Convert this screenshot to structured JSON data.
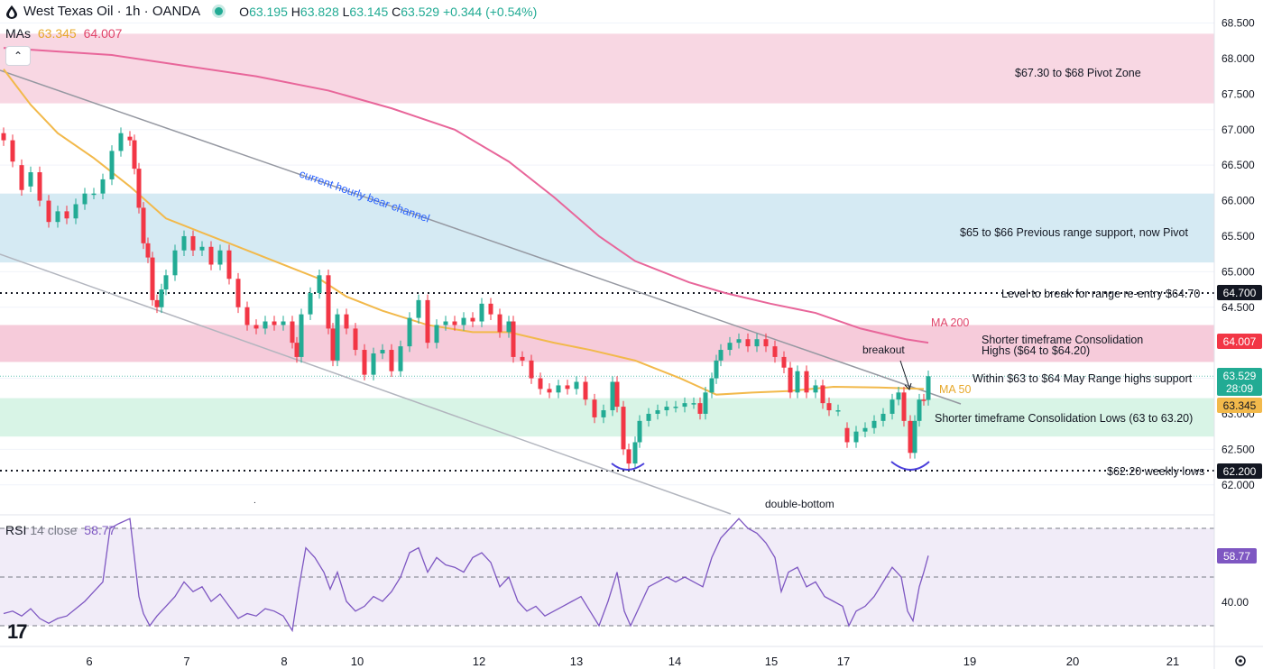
{
  "header": {
    "title": "West Texas Oil · 1h · OANDA",
    "open_label": "O",
    "open": "63.195",
    "high_label": "H",
    "high": "63.828",
    "low_label": "L",
    "low": "63.145",
    "close_label": "C",
    "close": "63.529",
    "change": "+0.344 (+0.54%)"
  },
  "mas": {
    "label": "MAs",
    "ma50": "63.345",
    "ma200": "64.007"
  },
  "collapse_icon": "chevron-up-icon",
  "rsi": {
    "label": "RSI",
    "params": "14 close",
    "value": "58.77",
    "axis_label": "40.00",
    "badge": "58.77"
  },
  "annotations": {
    "pivot_zone": "$67.30 to $68 Pivot Zone",
    "prev_range": "$65 to $66 Previous range support, now Pivot",
    "level_break": "Level to break for range re-entry $64.70",
    "consol_highs_1": "Shorter timeframe Consolidation",
    "consol_highs_2": "Highs ($64 to $64.20)",
    "within_range": "Within $63 to $64 May Range highs support",
    "consol_lows": "Shorter timeframe Consolidation Lows (63 to 63.20)",
    "weekly_lows": "$62.20 weekly lows",
    "ma200": "MA 200",
    "ma50": "MA 50",
    "breakout": "breakout",
    "channel": "current hourly bear channel",
    "double_bottom": "double-bottom"
  },
  "price_badges": {
    "level_64_70": "64.700",
    "ma200": "64.007",
    "last": "63.529",
    "countdown": "28:09",
    "ma50": "63.345",
    "level_62_20": "62.200"
  },
  "colors": {
    "up": "#22ab94",
    "down": "#f23645",
    "ma50": "#f2b94b",
    "ma200": "#e8669a",
    "rsi": "#7e57c2",
    "pink_zone": "#f8d7e3",
    "blue_zone": "#d5eaf3",
    "green_zone": "#d8f4e6"
  },
  "chart_data": {
    "type": "candlestick",
    "symbol": "West Texas Oil",
    "timeframe": "1h",
    "y_axis": {
      "ylim": [
        61.85,
        68.6
      ],
      "ticks": [
        62.0,
        62.5,
        63.0,
        63.5,
        64.0,
        64.5,
        65.0,
        65.5,
        66.0,
        66.5,
        67.0,
        67.5,
        68.0,
        68.5
      ],
      "tick_labels": [
        "62.000",
        "62.500",
        "63.000",
        "63.500",
        "64.000",
        "64.500",
        "65.000",
        "65.500",
        "66.000",
        "66.500",
        "67.000",
        "67.500",
        "68.000",
        "68.500"
      ]
    },
    "x_axis": {
      "labels": [
        "6",
        "7",
        "8",
        "10",
        "12",
        "13",
        "14",
        "15",
        "17",
        "19",
        "20",
        "21"
      ]
    },
    "zones": [
      {
        "name": "pivot-zone",
        "from": 67.37,
        "to": 68.35
      },
      {
        "name": "previous-range",
        "from": 65.13,
        "to": 66.1
      },
      {
        "name": "consolidation-highs",
        "from": 63.73,
        "to": 64.25
      },
      {
        "name": "consolidation-lows",
        "from": 62.68,
        "to": 63.22
      }
    ],
    "levels": [
      64.7,
      62.2
    ],
    "last_price": 63.529,
    "series": [
      {
        "name": "MA 50",
        "points": [
          [
            0,
            67.85
          ],
          [
            30,
            67.35
          ],
          [
            60,
            66.95
          ],
          [
            100,
            66.6
          ],
          [
            140,
            66.2
          ],
          [
            180,
            65.75
          ],
          [
            220,
            65.55
          ],
          [
            270,
            65.3
          ],
          [
            320,
            65.05
          ],
          [
            350,
            64.9
          ],
          [
            380,
            64.65
          ],
          [
            420,
            64.45
          ],
          [
            470,
            64.25
          ],
          [
            520,
            64.15
          ],
          [
            560,
            64.15
          ],
          [
            610,
            64.0
          ],
          [
            650,
            63.9
          ],
          [
            700,
            63.75
          ],
          [
            750,
            63.5
          ],
          [
            790,
            63.27
          ],
          [
            830,
            63.3
          ],
          [
            870,
            63.32
          ],
          [
            920,
            63.38
          ],
          [
            970,
            63.37
          ],
          [
            1020,
            63.35
          ]
        ]
      },
      {
        "name": "MA 200",
        "points": [
          [
            0,
            68.15
          ],
          [
            60,
            68.1
          ],
          [
            120,
            68.05
          ],
          [
            200,
            67.9
          ],
          [
            280,
            67.75
          ],
          [
            360,
            67.55
          ],
          [
            430,
            67.3
          ],
          [
            500,
            67.0
          ],
          [
            560,
            66.55
          ],
          [
            610,
            66.05
          ],
          [
            660,
            65.5
          ],
          [
            700,
            65.15
          ],
          [
            760,
            64.85
          ],
          [
            800,
            64.7
          ],
          [
            850,
            64.55
          ],
          [
            900,
            64.42
          ],
          [
            950,
            64.2
          ],
          [
            1000,
            64.05
          ],
          [
            1025,
            64.0
          ]
        ]
      }
    ],
    "candles": [
      {
        "t": 0,
        "o": 66.95,
        "c": 66.85
      },
      {
        "t": 10,
        "o": 66.85,
        "c": 66.55
      },
      {
        "t": 20,
        "o": 66.5,
        "c": 66.15
      },
      {
        "t": 30,
        "o": 66.2,
        "c": 66.4
      },
      {
        "t": 40,
        "o": 66.4,
        "c": 66.0
      },
      {
        "t": 50,
        "o": 66.0,
        "c": 65.7
      },
      {
        "t": 60,
        "o": 65.7,
        "c": 65.85
      },
      {
        "t": 70,
        "o": 65.85,
        "c": 65.75
      },
      {
        "t": 80,
        "o": 65.75,
        "c": 65.95
      },
      {
        "t": 90,
        "o": 65.95,
        "c": 66.1
      },
      {
        "t": 100,
        "o": 66.1,
        "c": 66.1
      },
      {
        "t": 110,
        "o": 66.1,
        "c": 66.3
      },
      {
        "t": 120,
        "o": 66.3,
        "c": 66.7
      },
      {
        "t": 130,
        "o": 66.7,
        "c": 66.95
      },
      {
        "t": 140,
        "o": 66.9,
        "c": 66.85
      },
      {
        "t": 145,
        "o": 66.85,
        "c": 66.45
      },
      {
        "t": 150,
        "o": 66.45,
        "c": 65.9
      },
      {
        "t": 155,
        "o": 65.9,
        "c": 65.4
      },
      {
        "t": 160,
        "o": 65.4,
        "c": 65.2
      },
      {
        "t": 165,
        "o": 65.2,
        "c": 64.6
      },
      {
        "t": 170,
        "o": 64.6,
        "c": 64.5
      },
      {
        "t": 175,
        "o": 64.5,
        "c": 64.75
      },
      {
        "t": 180,
        "o": 64.75,
        "c": 64.95
      },
      {
        "t": 190,
        "o": 64.95,
        "c": 65.3
      },
      {
        "t": 200,
        "o": 65.3,
        "c": 65.5
      },
      {
        "t": 210,
        "o": 65.5,
        "c": 65.3
      },
      {
        "t": 220,
        "o": 65.3,
        "c": 65.35
      },
      {
        "t": 230,
        "o": 65.35,
        "c": 65.1
      },
      {
        "t": 240,
        "o": 65.1,
        "c": 65.3
      },
      {
        "t": 250,
        "o": 65.3,
        "c": 64.9
      },
      {
        "t": 260,
        "o": 64.9,
        "c": 64.5
      },
      {
        "t": 270,
        "o": 64.5,
        "c": 64.25
      },
      {
        "t": 280,
        "o": 64.25,
        "c": 64.2
      },
      {
        "t": 290,
        "o": 64.2,
        "c": 64.3
      },
      {
        "t": 300,
        "o": 64.3,
        "c": 64.25
      },
      {
        "t": 310,
        "o": 64.25,
        "c": 64.3
      },
      {
        "t": 320,
        "o": 64.3,
        "c": 64.0
      },
      {
        "t": 325,
        "o": 64.0,
        "c": 63.8
      },
      {
        "t": 330,
        "o": 63.8,
        "c": 64.4
      },
      {
        "t": 340,
        "o": 64.4,
        "c": 64.7
      },
      {
        "t": 350,
        "o": 64.7,
        "c": 64.95
      },
      {
        "t": 360,
        "o": 64.95,
        "c": 64.2
      },
      {
        "t": 365,
        "o": 64.2,
        "c": 63.75
      },
      {
        "t": 370,
        "o": 63.75,
        "c": 64.4
      },
      {
        "t": 380,
        "o": 64.4,
        "c": 64.2
      },
      {
        "t": 390,
        "o": 64.2,
        "c": 63.9
      },
      {
        "t": 400,
        "o": 63.9,
        "c": 63.55
      },
      {
        "t": 410,
        "o": 63.55,
        "c": 63.85
      },
      {
        "t": 420,
        "o": 63.85,
        "c": 63.9
      },
      {
        "t": 430,
        "o": 63.9,
        "c": 63.6
      },
      {
        "t": 440,
        "o": 63.6,
        "c": 63.95
      },
      {
        "t": 450,
        "o": 63.95,
        "c": 64.35
      },
      {
        "t": 460,
        "o": 64.35,
        "c": 64.6
      },
      {
        "t": 470,
        "o": 64.6,
        "c": 64.0
      },
      {
        "t": 480,
        "o": 64.0,
        "c": 64.25
      },
      {
        "t": 490,
        "o": 64.25,
        "c": 64.3
      },
      {
        "t": 500,
        "o": 64.3,
        "c": 64.25
      },
      {
        "t": 510,
        "o": 64.25,
        "c": 64.35
      },
      {
        "t": 520,
        "o": 64.35,
        "c": 64.3
      },
      {
        "t": 530,
        "o": 64.3,
        "c": 64.55
      },
      {
        "t": 540,
        "o": 64.55,
        "c": 64.4
      },
      {
        "t": 550,
        "o": 64.4,
        "c": 64.15
      },
      {
        "t": 560,
        "o": 64.15,
        "c": 64.3
      },
      {
        "t": 565,
        "o": 64.3,
        "c": 63.8
      },
      {
        "t": 575,
        "o": 63.8,
        "c": 63.75
      },
      {
        "t": 585,
        "o": 63.75,
        "c": 63.5
      },
      {
        "t": 595,
        "o": 63.5,
        "c": 63.35
      },
      {
        "t": 605,
        "o": 63.35,
        "c": 63.3
      },
      {
        "t": 615,
        "o": 63.3,
        "c": 63.4
      },
      {
        "t": 625,
        "o": 63.4,
        "c": 63.35
      },
      {
        "t": 635,
        "o": 63.35,
        "c": 63.45
      },
      {
        "t": 645,
        "o": 63.45,
        "c": 63.2
      },
      {
        "t": 655,
        "o": 63.2,
        "c": 62.95
      },
      {
        "t": 665,
        "o": 62.95,
        "c": 63.05
      },
      {
        "t": 675,
        "o": 63.05,
        "c": 63.45
      },
      {
        "t": 680,
        "o": 63.45,
        "c": 63.1
      },
      {
        "t": 687,
        "o": 63.1,
        "c": 62.5
      },
      {
        "t": 693,
        "o": 62.5,
        "c": 62.3
      },
      {
        "t": 700,
        "o": 62.3,
        "c": 62.6
      },
      {
        "t": 705,
        "o": 62.6,
        "c": 62.9
      },
      {
        "t": 715,
        "o": 62.9,
        "c": 63.0
      },
      {
        "t": 725,
        "o": 63.0,
        "c": 63.05
      },
      {
        "t": 735,
        "o": 63.05,
        "c": 63.1
      },
      {
        "t": 745,
        "o": 63.1,
        "c": 63.1
      },
      {
        "t": 755,
        "o": 63.1,
        "c": 63.15
      },
      {
        "t": 765,
        "o": 63.15,
        "c": 63.15
      },
      {
        "t": 772,
        "o": 63.15,
        "c": 63.0
      },
      {
        "t": 778,
        "o": 63.0,
        "c": 63.3
      },
      {
        "t": 785,
        "o": 63.3,
        "c": 63.5
      },
      {
        "t": 790,
        "o": 63.5,
        "c": 63.75
      },
      {
        "t": 795,
        "o": 63.75,
        "c": 63.9
      },
      {
        "t": 805,
        "o": 63.9,
        "c": 64.0
      },
      {
        "t": 815,
        "o": 64.0,
        "c": 64.05
      },
      {
        "t": 825,
        "o": 64.05,
        "c": 63.95
      },
      {
        "t": 835,
        "o": 63.95,
        "c": 64.05
      },
      {
        "t": 845,
        "o": 64.05,
        "c": 63.95
      },
      {
        "t": 855,
        "o": 63.95,
        "c": 63.8
      },
      {
        "t": 865,
        "o": 63.8,
        "c": 63.65
      },
      {
        "t": 872,
        "o": 63.65,
        "c": 63.3
      },
      {
        "t": 880,
        "o": 63.3,
        "c": 63.6
      },
      {
        "t": 890,
        "o": 63.6,
        "c": 63.3
      },
      {
        "t": 900,
        "o": 63.3,
        "c": 63.4
      },
      {
        "t": 908,
        "o": 63.4,
        "c": 63.15
      },
      {
        "t": 915,
        "o": 63.15,
        "c": 63.05
      },
      {
        "t": 925,
        "o": 63.05,
        "c": 63.05
      },
      {
        "t": 935,
        "o": 62.8,
        "c": 62.6
      },
      {
        "t": 945,
        "o": 62.6,
        "c": 62.75
      },
      {
        "t": 955,
        "o": 62.75,
        "c": 62.8
      },
      {
        "t": 965,
        "o": 62.8,
        "c": 62.9
      },
      {
        "t": 975,
        "o": 62.9,
        "c": 63.0
      },
      {
        "t": 985,
        "o": 63.0,
        "c": 63.2
      },
      {
        "t": 992,
        "o": 63.2,
        "c": 63.3
      },
      {
        "t": 998,
        "o": 63.3,
        "c": 62.9
      },
      {
        "t": 1005,
        "o": 62.9,
        "c": 62.45
      },
      {
        "t": 1010,
        "o": 62.45,
        "c": 62.9
      },
      {
        "t": 1015,
        "o": 62.9,
        "c": 63.2
      },
      {
        "t": 1020,
        "o": 63.2,
        "c": 63.195
      },
      {
        "t": 1025,
        "o": 63.195,
        "c": 63.529
      }
    ],
    "rsi_data": {
      "ylim": [
        20,
        80
      ],
      "bands": [
        30,
        50,
        70
      ],
      "values": [
        [
          0,
          35
        ],
        [
          10,
          36
        ],
        [
          20,
          34
        ],
        [
          30,
          37
        ],
        [
          40,
          33
        ],
        [
          50,
          31
        ],
        [
          60,
          33
        ],
        [
          70,
          34
        ],
        [
          80,
          37
        ],
        [
          90,
          40
        ],
        [
          100,
          44
        ],
        [
          110,
          48
        ],
        [
          118,
          70
        ],
        [
          128,
          72
        ],
        [
          140,
          74
        ],
        [
          145,
          58
        ],
        [
          150,
          42
        ],
        [
          155,
          35
        ],
        [
          162,
          30
        ],
        [
          170,
          34
        ],
        [
          180,
          38
        ],
        [
          190,
          42
        ],
        [
          200,
          48
        ],
        [
          210,
          44
        ],
        [
          220,
          46
        ],
        [
          230,
          40
        ],
        [
          240,
          43
        ],
        [
          250,
          38
        ],
        [
          260,
          33
        ],
        [
          270,
          35
        ],
        [
          280,
          34
        ],
        [
          290,
          37
        ],
        [
          300,
          36
        ],
        [
          310,
          34
        ],
        [
          320,
          28
        ],
        [
          327,
          45
        ],
        [
          335,
          62
        ],
        [
          345,
          58
        ],
        [
          355,
          52
        ],
        [
          362,
          45
        ],
        [
          370,
          52
        ],
        [
          380,
          40
        ],
        [
          390,
          36
        ],
        [
          400,
          38
        ],
        [
          410,
          42
        ],
        [
          420,
          40
        ],
        [
          430,
          44
        ],
        [
          440,
          50
        ],
        [
          450,
          60
        ],
        [
          460,
          62
        ],
        [
          470,
          52
        ],
        [
          480,
          58
        ],
        [
          490,
          55
        ],
        [
          500,
          54
        ],
        [
          510,
          52
        ],
        [
          520,
          58
        ],
        [
          530,
          60
        ],
        [
          540,
          56
        ],
        [
          550,
          46
        ],
        [
          560,
          50
        ],
        [
          570,
          40
        ],
        [
          580,
          36
        ],
        [
          590,
          38
        ],
        [
          600,
          34
        ],
        [
          610,
          36
        ],
        [
          620,
          38
        ],
        [
          630,
          40
        ],
        [
          640,
          42
        ],
        [
          650,
          36
        ],
        [
          660,
          30
        ],
        [
          670,
          40
        ],
        [
          680,
          52
        ],
        [
          688,
          36
        ],
        [
          695,
          30
        ],
        [
          705,
          38
        ],
        [
          715,
          46
        ],
        [
          725,
          48
        ],
        [
          735,
          50
        ],
        [
          745,
          48
        ],
        [
          755,
          50
        ],
        [
          765,
          48
        ],
        [
          775,
          46
        ],
        [
          785,
          58
        ],
        [
          795,
          66
        ],
        [
          805,
          70
        ],
        [
          815,
          74
        ],
        [
          825,
          70
        ],
        [
          835,
          68
        ],
        [
          845,
          64
        ],
        [
          855,
          58
        ],
        [
          862,
          44
        ],
        [
          870,
          52
        ],
        [
          880,
          54
        ],
        [
          890,
          46
        ],
        [
          900,
          48
        ],
        [
          910,
          42
        ],
        [
          920,
          40
        ],
        [
          930,
          38
        ],
        [
          937,
          30
        ],
        [
          945,
          36
        ],
        [
          955,
          38
        ],
        [
          965,
          42
        ],
        [
          975,
          48
        ],
        [
          985,
          54
        ],
        [
          995,
          50
        ],
        [
          1002,
          36
        ],
        [
          1008,
          32
        ],
        [
          1015,
          46
        ],
        [
          1020,
          52
        ],
        [
          1025,
          58.77
        ]
      ]
    }
  }
}
